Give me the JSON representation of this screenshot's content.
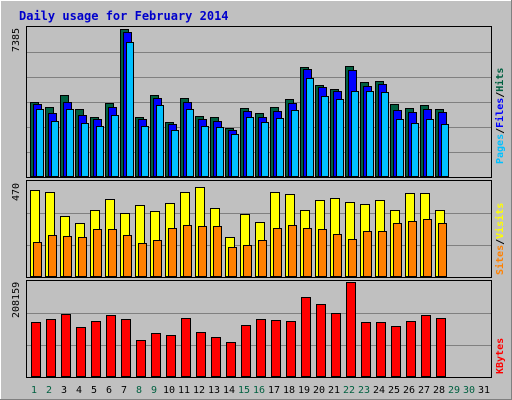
{
  "chart_data": {
    "type": "bar",
    "title": "Daily usage for February 2014",
    "days": [
      "1",
      "2",
      "3",
      "4",
      "5",
      "6",
      "7",
      "8",
      "9",
      "10",
      "11",
      "12",
      "13",
      "14",
      "15",
      "16",
      "17",
      "18",
      "19",
      "20",
      "21",
      "22",
      "23",
      "24",
      "25",
      "26",
      "27",
      "28",
      "29",
      "30",
      "31"
    ],
    "weekend_days": [
      "1",
      "2",
      "8",
      "9",
      "15",
      "16",
      "22",
      "23",
      "29",
      "30"
    ],
    "colors": {
      "pages": "#00c0ff",
      "files": "#0000ff",
      "hits": "#006040",
      "visits": "#ffff00",
      "sites": "#ff8000",
      "kbytes": "#ff0000",
      "weekday_label": "#000000",
      "weekend_label": "#006040"
    },
    "panels": [
      {
        "name": "hits_files_pages",
        "ymax_label": "7385",
        "ymax": 7385,
        "axis_label_parts": [
          "Pages",
          "Files",
          "Hits"
        ],
        "axis_label_colors": [
          "#00c0ff",
          "#0000ff",
          "#006040"
        ],
        "series": [
          {
            "name": "Hits",
            "color": "#006040",
            "values": [
              3700,
              3450,
              4050,
              3350,
              2950,
              3650,
              7350,
              2950,
              4050,
              2750,
              3900,
              3000,
              2950,
              2450,
              3400,
              3150,
              3450,
              3850,
              5450,
              4550,
              4350,
              5500,
              4700,
              4750,
              3600,
              3400,
              3550,
              3350
            ]
          },
          {
            "name": "Files",
            "color": "#0000ff",
            "values": [
              3600,
              3150,
              3700,
              3050,
              2850,
              3450,
              7200,
              2850,
              3900,
              2650,
              3700,
              2850,
              2800,
              2350,
              3250,
              2950,
              3250,
              3650,
              5350,
              4450,
              4250,
              5300,
              4500,
              4600,
              3300,
              3200,
              3350,
              3200
            ]
          },
          {
            "name": "Pages",
            "color": "#00c0ff",
            "values": [
              3350,
              2800,
              3350,
              2700,
              2550,
              3050,
              6700,
              2550,
              3550,
              2350,
              3350,
              2550,
              2500,
              2150,
              2950,
              2750,
              2900,
              3300,
              4900,
              4000,
              3850,
              4250,
              4250,
              4200,
              2850,
              2700,
              2850,
              2650
            ]
          }
        ]
      },
      {
        "name": "visits_sites",
        "ymax_label": "470",
        "ymax": 470,
        "axis_label_parts": [
          "Sites",
          "Visits"
        ],
        "axis_label_colors": [
          "#ff8000",
          "#ffff00"
        ],
        "series": [
          {
            "name": "Visits",
            "color": "#ffff00",
            "values": [
              430,
              420,
              300,
              265,
              330,
              385,
              315,
              355,
              325,
              365,
              420,
              445,
              340,
              200,
              310,
              270,
              420,
              410,
              330,
              380,
              390,
              370,
              360,
              380,
              330,
              415,
              415,
              330
            ]
          },
          {
            "name": "Sites",
            "color": "#ff8000",
            "values": [
              175,
              210,
              205,
              200,
              235,
              235,
              210,
              170,
              185,
              240,
              255,
              250,
              250,
              150,
              160,
              185,
              240,
              255,
              240,
              235,
              215,
              190,
              230,
              230,
              265,
              275,
              285,
              265
            ]
          }
        ]
      },
      {
        "name": "kbytes",
        "ymax_label": "208159",
        "ymax": 208159,
        "axis_label_parts": [
          "KBytes"
        ],
        "axis_label_colors": [
          "#ff0000"
        ],
        "series": [
          {
            "name": "KBytes",
            "color": "#ff0000",
            "values": [
              121000,
              126000,
              138000,
              110000,
              122000,
              135000,
              128000,
              80000,
              96000,
              93000,
              129000,
              99000,
              88000,
              76000,
              113000,
              126000,
              124000,
              122000,
              176000,
              159000,
              141000,
              208159,
              121000,
              121000,
              111000,
              122000,
              136000,
              129000
            ]
          }
        ]
      }
    ]
  }
}
